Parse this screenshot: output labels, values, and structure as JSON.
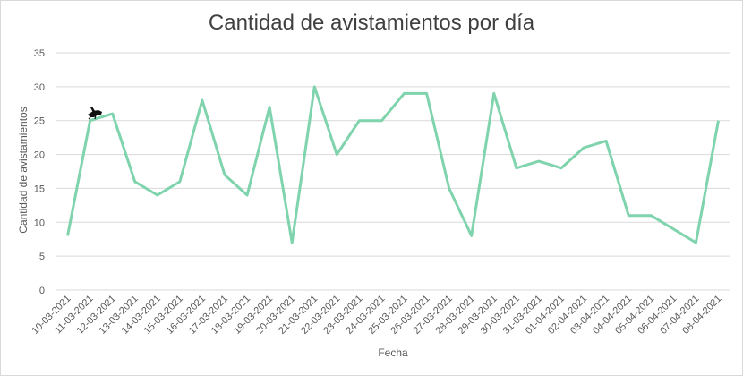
{
  "chart_data": {
    "type": "line",
    "title": "Cantidad de avistamientos por día",
    "xlabel": "Fecha",
    "ylabel": "Cantidad de avistamientos",
    "ylim": [
      0,
      35
    ],
    "yticks": [
      0,
      5,
      10,
      15,
      20,
      25,
      30,
      35
    ],
    "grid": true,
    "line_color": "#7fd3ad",
    "grid_color": "#d9d9d9",
    "categories": [
      "10-03-2021",
      "11-03-2021",
      "12-03-2021",
      "13-03-2021",
      "14-03-2021",
      "15-03-2021",
      "16-03-2021",
      "17-03-2021",
      "18-03-2021",
      "19-03-2021",
      "20-03-2021",
      "21-03-2021",
      "22-03-2021",
      "23-03-2021",
      "24-03-2021",
      "25-03-2021",
      "26-03-2021",
      "27-03-2021",
      "28-03-2021",
      "29-03-2021",
      "30-03-2021",
      "31-03-2021",
      "01-04-2021",
      "02-04-2021",
      "03-04-2021",
      "04-04-2021",
      "05-04-2021",
      "06-04-2021",
      "07-04-2021",
      "08-04-2021"
    ],
    "series": [
      {
        "name": "Cantidad de avistamientos",
        "values": [
          8,
          25,
          26,
          16,
          14,
          16,
          28,
          17,
          14,
          27,
          7,
          30,
          20,
          25,
          25,
          29,
          29,
          15,
          8,
          29,
          18,
          19,
          18,
          21,
          22,
          11,
          11,
          9,
          7,
          25
        ]
      }
    ]
  }
}
